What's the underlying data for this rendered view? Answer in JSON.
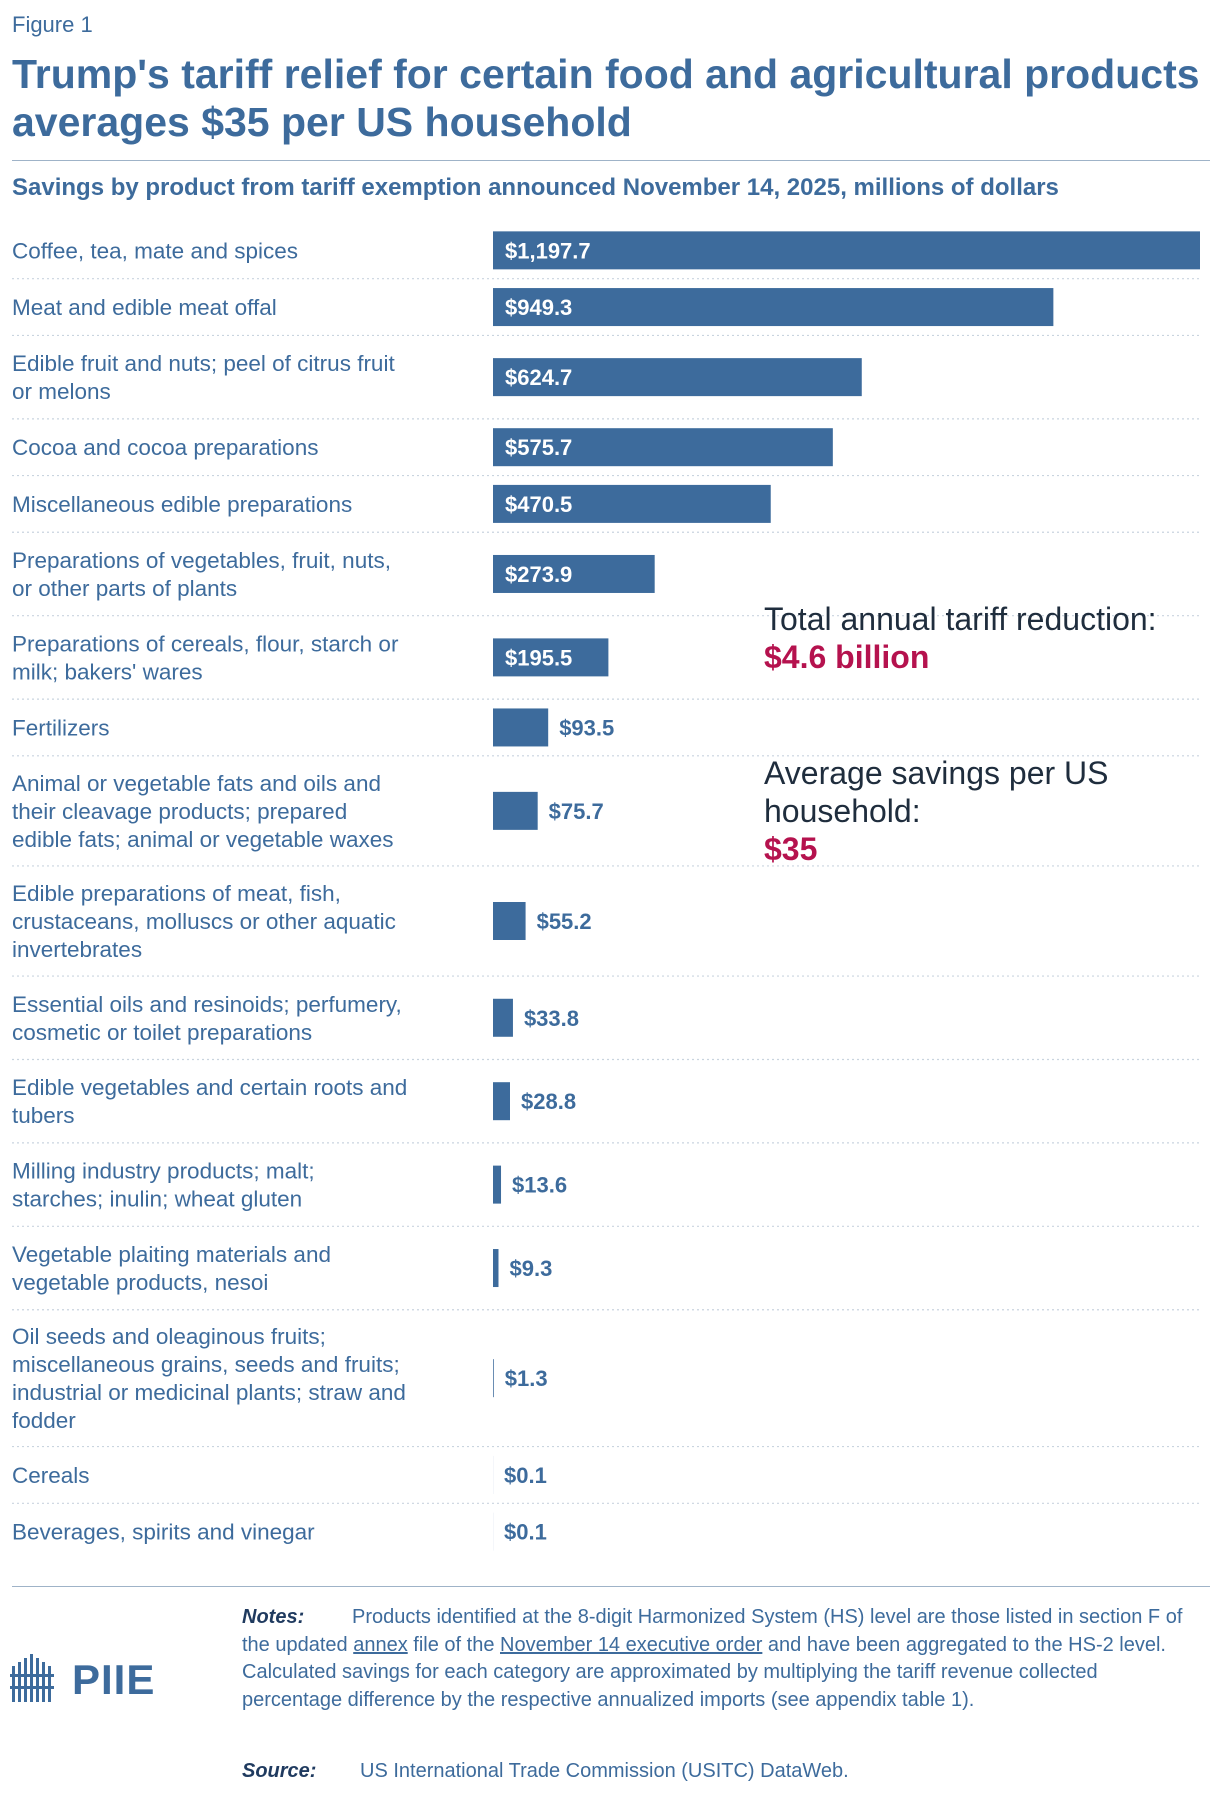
{
  "figure_label": "Figure 1",
  "title": "Trump's tariff relief for certain food and agricultural products averages $35 per US household",
  "subtitle": "Savings by product from tariff exemption announced November 14, 2025, millions of dollars",
  "callout": {
    "total_label": "Total annual tariff reduction:",
    "total_value": "$4.6 billion",
    "avg_label": "Average savings per US household:",
    "avg_value": "$35"
  },
  "notes": {
    "label": "Notes:",
    "text_1": "Products identified at the 8-digit Harmonized System (HS) level are those listed in section F of the updated ",
    "link_1": "annex",
    "text_2": " file of the ",
    "link_2": "November 14 executive order",
    "text_3": " and have been aggregated to the HS-2 level. Calculated savings for each category are approximated by multiplying the tariff revenue collected percentage difference by the respective annualized imports (see appendix table 1)."
  },
  "source": {
    "label": "Source:",
    "text": "US International Trade Commission (USITC) DataWeb."
  },
  "logo": {
    "text": "PIIE"
  },
  "colors": {
    "bar": "#3d6b9c",
    "accent": "#b5124e",
    "divider": "#c9d4df"
  },
  "chart_data": {
    "type": "bar",
    "orientation": "horizontal",
    "unit": "millions of dollars",
    "categories": [
      "Coffee, tea, mate and spices",
      "Meat and edible meat offal",
      "Edible fruit and nuts; peel of citrus fruit or melons",
      "Cocoa and cocoa preparations",
      "Miscellaneous edible preparations",
      "Preparations of vegetables, fruit, nuts, or other parts of plants",
      "Preparations of cereals, flour, starch or milk; bakers' wares",
      "Fertilizers",
      "Animal or vegetable fats and oils and their cleavage products; prepared edible fats; animal or vegetable waxes",
      "Edible preparations of meat, fish, crustaceans, molluscs or other aquatic invertebrates",
      "Essential oils and resinoids; perfumery, cosmetic or toilet preparations",
      "Edible vegetables and certain roots and tubers",
      "Milling industry products; malt; starches; inulin; wheat gluten",
      "Vegetable plaiting materials and vegetable products, nesoi",
      "Oil seeds and oleaginous fruits; miscellaneous grains, seeds and fruits; industrial or medicinal plants; straw and fodder",
      "Cereals",
      "Beverages, spirits and vinegar"
    ],
    "category_lines": [
      [
        "Coffee, tea, mate and spices"
      ],
      [
        "Meat and edible meat offal"
      ],
      [
        "Edible fruit and nuts; peel of citrus fruit",
        "or melons"
      ],
      [
        "Cocoa and cocoa preparations"
      ],
      [
        "Miscellaneous edible preparations"
      ],
      [
        "Preparations of vegetables, fruit, nuts,",
        "or other parts of plants"
      ],
      [
        "Preparations of cereals, flour, starch or",
        "milk; bakers' wares"
      ],
      [
        "Fertilizers"
      ],
      [
        "Animal or vegetable fats and oils and",
        "their cleavage products; prepared",
        "edible fats; animal or vegetable waxes"
      ],
      [
        "Edible preparations of meat, fish,",
        "crustaceans, molluscs or other aquatic",
        "invertebrates"
      ],
      [
        "Essential oils and resinoids; perfumery,",
        "cosmetic or toilet preparations"
      ],
      [
        "Edible vegetables and certain roots and",
        "tubers"
      ],
      [
        "Milling industry products; malt;",
        "starches; inulin; wheat gluten"
      ],
      [
        "Vegetable plaiting materials and",
        "vegetable products, nesoi"
      ],
      [
        "Oil seeds and oleaginous fruits;",
        "miscellaneous grains, seeds and fruits;",
        "industrial or medicinal plants; straw and",
        "fodder"
      ],
      [
        "Cereals"
      ],
      [
        "Beverages, spirits and vinegar"
      ]
    ],
    "values": [
      1197.7,
      949.3,
      624.7,
      575.7,
      470.5,
      273.9,
      195.5,
      93.5,
      75.7,
      55.2,
      33.8,
      28.8,
      13.6,
      9.3,
      1.3,
      0.1,
      0.1
    ],
    "value_labels": [
      "$1,197.7",
      "$949.3",
      "$624.7",
      "$575.7",
      "$470.5",
      "$273.9",
      "$195.5",
      "$93.5",
      "$75.7",
      "$55.2",
      "$33.8",
      "$28.8",
      "$13.6",
      "$9.3",
      "$1.3",
      "$0.1",
      "$0.1"
    ],
    "xlim": [
      0,
      1197.7
    ],
    "grid": false,
    "legend": "none"
  }
}
